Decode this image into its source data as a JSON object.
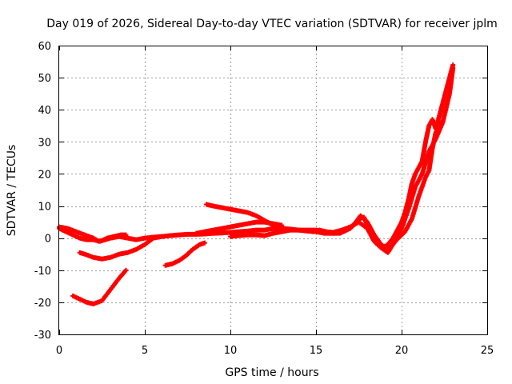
{
  "chart_data": {
    "type": "scatter",
    "title": "Day 019 of 2026, Sidereal Day-to-day VTEC variation (SDTVAR) for receiver jplm",
    "xlabel": "GPS time / hours",
    "ylabel": "SDTVAR / TECUs",
    "xlim": [
      0,
      25
    ],
    "ylim": [
      -30,
      60
    ],
    "xticks": [
      0,
      5,
      10,
      15,
      20,
      25
    ],
    "yticks": [
      -30,
      -20,
      -10,
      0,
      10,
      20,
      30,
      40,
      50,
      60
    ],
    "grid": true,
    "marker_color": "#ff0000",
    "series": [
      {
        "name": "track-1",
        "points": [
          [
            0,
            3.5
          ],
          [
            0.5,
            3
          ],
          [
            1,
            2
          ],
          [
            1.5,
            1
          ],
          [
            2,
            0
          ],
          [
            2.3,
            -1
          ],
          [
            2.7,
            -0.5
          ],
          [
            3,
            0
          ],
          [
            3.5,
            0.5
          ],
          [
            4,
            0
          ],
          [
            4.5,
            -0.5
          ],
          [
            5,
            0
          ],
          [
            5.5,
            0.3
          ],
          [
            6,
            0.5
          ],
          [
            6.5,
            0.8
          ],
          [
            7,
            1
          ],
          [
            7.5,
            1.2
          ],
          [
            8,
            1.2
          ],
          [
            8.5,
            1.3
          ],
          [
            9,
            1.5
          ],
          [
            9.5,
            1.6
          ],
          [
            10,
            1.8
          ],
          [
            10.5,
            2
          ],
          [
            11,
            2.2
          ],
          [
            11.5,
            2.5
          ],
          [
            12,
            2.5
          ],
          [
            12.5,
            3
          ],
          [
            13,
            3
          ],
          [
            13.5,
            2.8
          ],
          [
            14,
            2.5
          ],
          [
            14.5,
            2.2
          ],
          [
            15,
            2
          ],
          [
            15.5,
            1.5
          ],
          [
            16,
            1.5
          ],
          [
            16.5,
            2
          ],
          [
            17,
            3
          ],
          [
            17.5,
            6
          ],
          [
            17.8,
            6.5
          ],
          [
            18,
            4
          ],
          [
            18.3,
            0
          ],
          [
            18.6,
            -2
          ],
          [
            18.9,
            -3
          ],
          [
            19.2,
            -2
          ],
          [
            19.5,
            0
          ],
          [
            19.8,
            3
          ],
          [
            20,
            5
          ],
          [
            20.2,
            8
          ],
          [
            20.4,
            12
          ],
          [
            20.6,
            17
          ],
          [
            20.8,
            20
          ],
          [
            21,
            22
          ],
          [
            21.2,
            24
          ],
          [
            21.4,
            30
          ],
          [
            21.6,
            35
          ],
          [
            21.8,
            37
          ],
          [
            22,
            34
          ],
          [
            22.2,
            38
          ],
          [
            22.4,
            42
          ],
          [
            22.6,
            46
          ],
          [
            22.8,
            50
          ],
          [
            23,
            54
          ]
        ]
      },
      {
        "name": "track-2",
        "points": [
          [
            0,
            3
          ],
          [
            0.4,
            2
          ],
          [
            0.8,
            1
          ],
          [
            1.2,
            0
          ],
          [
            1.6,
            -0.5
          ],
          [
            2,
            -0.5
          ],
          [
            2.4,
            -1
          ],
          [
            2.8,
            0
          ],
          [
            3.2,
            0.5
          ],
          [
            3.6,
            1
          ],
          [
            3.9,
            1
          ]
        ]
      },
      {
        "name": "track-3",
        "points": [
          [
            1.2,
            -4.5
          ],
          [
            1.5,
            -5
          ],
          [
            2,
            -6
          ],
          [
            2.5,
            -6.5
          ],
          [
            3,
            -6
          ],
          [
            3.5,
            -5
          ],
          [
            4,
            -4.5
          ],
          [
            4.5,
            -3.5
          ],
          [
            5,
            -2
          ],
          [
            5.5,
            0
          ],
          [
            6,
            0.5
          ]
        ]
      },
      {
        "name": "track-4",
        "points": [
          [
            0.8,
            -18
          ],
          [
            1.2,
            -19
          ],
          [
            1.6,
            -20
          ],
          [
            2,
            -20.5
          ],
          [
            2.5,
            -19.5
          ],
          [
            3,
            -16
          ],
          [
            3.5,
            -12.5
          ],
          [
            3.9,
            -10
          ]
        ]
      },
      {
        "name": "track-5",
        "points": [
          [
            6.2,
            -8.5
          ],
          [
            6.6,
            -8
          ],
          [
            7,
            -7
          ],
          [
            7.4,
            -5.5
          ],
          [
            7.8,
            -3.5
          ],
          [
            8.2,
            -2
          ],
          [
            8.5,
            -1.5
          ]
        ]
      },
      {
        "name": "track-6",
        "points": [
          [
            8.6,
            10.5
          ],
          [
            9,
            10
          ],
          [
            9.5,
            9.5
          ],
          [
            10,
            9
          ],
          [
            10.5,
            8.5
          ],
          [
            11,
            8
          ],
          [
            11.5,
            7
          ],
          [
            12,
            5.5
          ],
          [
            12.5,
            4
          ],
          [
            13,
            3.5
          ]
        ]
      },
      {
        "name": "track-7",
        "points": [
          [
            8,
            1.5
          ],
          [
            8.5,
            2
          ],
          [
            9,
            2.5
          ],
          [
            9.5,
            3
          ],
          [
            10,
            3.5
          ],
          [
            10.5,
            4
          ],
          [
            11,
            4.5
          ],
          [
            11.5,
            5
          ],
          [
            12,
            5
          ],
          [
            12.5,
            4.5
          ],
          [
            13,
            4
          ]
        ]
      },
      {
        "name": "track-8",
        "points": [
          [
            10,
            0.5
          ],
          [
            10.5,
            0.8
          ],
          [
            11,
            1
          ],
          [
            11.5,
            1
          ],
          [
            12,
            0.8
          ],
          [
            12.5,
            1.5
          ],
          [
            13,
            2
          ],
          [
            13.5,
            2.5
          ],
          [
            14,
            2.5
          ],
          [
            14.5,
            2.5
          ],
          [
            15,
            2.5
          ],
          [
            15.5,
            2
          ],
          [
            16,
            1.8
          ],
          [
            16.5,
            2.5
          ],
          [
            17,
            3.5
          ],
          [
            17.5,
            5
          ],
          [
            18,
            3
          ],
          [
            18.4,
            -1
          ],
          [
            18.8,
            -3
          ],
          [
            19.2,
            -4.5
          ],
          [
            19.6,
            -1
          ],
          [
            20,
            3
          ],
          [
            20.4,
            9
          ],
          [
            20.8,
            16
          ],
          [
            21.2,
            20
          ],
          [
            21.6,
            27
          ],
          [
            22,
            31
          ],
          [
            22.4,
            36
          ],
          [
            22.8,
            45
          ],
          [
            23,
            53
          ]
        ]
      },
      {
        "name": "track-9",
        "points": [
          [
            14.8,
            2
          ],
          [
            15.2,
            2.5
          ],
          [
            15.6,
            2
          ],
          [
            16,
            1.5
          ],
          [
            16.4,
            1.5
          ],
          [
            16.8,
            2.5
          ],
          [
            17.2,
            4
          ],
          [
            17.6,
            7
          ],
          [
            18,
            5
          ],
          [
            18.4,
            1
          ],
          [
            18.8,
            -2
          ],
          [
            19.1,
            -3
          ],
          [
            19.4,
            -2.5
          ],
          [
            19.8,
            0
          ],
          [
            20.2,
            2
          ],
          [
            20.6,
            6
          ],
          [
            21,
            13
          ],
          [
            21.4,
            19
          ],
          [
            21.6,
            21
          ],
          [
            21.8,
            28
          ],
          [
            22,
            33
          ],
          [
            22.3,
            36
          ]
        ]
      }
    ]
  }
}
